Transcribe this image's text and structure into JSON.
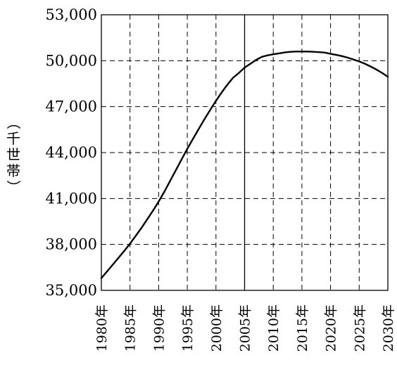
{
  "chart_data": {
    "type": "line",
    "title": "",
    "xlabel": "",
    "ylabel": "（千世帯）",
    "ylabel_chars": [
      "（",
      "千",
      "世",
      "帯",
      "）"
    ],
    "categories": [
      "1980年",
      "1985年",
      "1990年",
      "1995年",
      "2000年",
      "2005年",
      "2010年",
      "2015年",
      "2020年",
      "2025年",
      "2030年"
    ],
    "y_ticks": [
      "35,000",
      "38,000",
      "41,000",
      "44,000",
      "47,000",
      "50,000",
      "53,000"
    ],
    "ylim": [
      35000,
      53000
    ],
    "x": [
      1980,
      1981,
      1982,
      1983,
      1984,
      1985,
      1986,
      1987,
      1988,
      1989,
      1990,
      1991,
      1992,
      1993,
      1994,
      1995,
      1996,
      1997,
      1998,
      1999,
      2000,
      2001,
      2002,
      2003,
      2004,
      2005,
      2006,
      2007,
      2008,
      2009,
      2010,
      2011,
      2012,
      2013,
      2014,
      2015,
      2016,
      2017,
      2018,
      2019,
      2020,
      2021,
      2022,
      2023,
      2024,
      2025,
      2026,
      2027,
      2028,
      2029,
      2030
    ],
    "series": [
      {
        "values": [
          35800,
          36240,
          36680,
          37130,
          37580,
          38050,
          38560,
          39080,
          39640,
          40200,
          40800,
          41450,
          42150,
          42850,
          43550,
          44250,
          44900,
          45550,
          46180,
          46790,
          47380,
          47930,
          48440,
          48890,
          49200,
          49550,
          49800,
          50050,
          50250,
          50350,
          50420,
          50480,
          50540,
          50580,
          50600,
          50600,
          50600,
          50580,
          50560,
          50530,
          50450,
          50380,
          50300,
          50200,
          50080,
          49950,
          49800,
          49620,
          49420,
          49200,
          48950
        ]
      }
    ],
    "grid": true,
    "vertical_marker": "2005年",
    "colors": {
      "line": "#000000",
      "grid": "#000000",
      "background": "#ffffff"
    }
  }
}
